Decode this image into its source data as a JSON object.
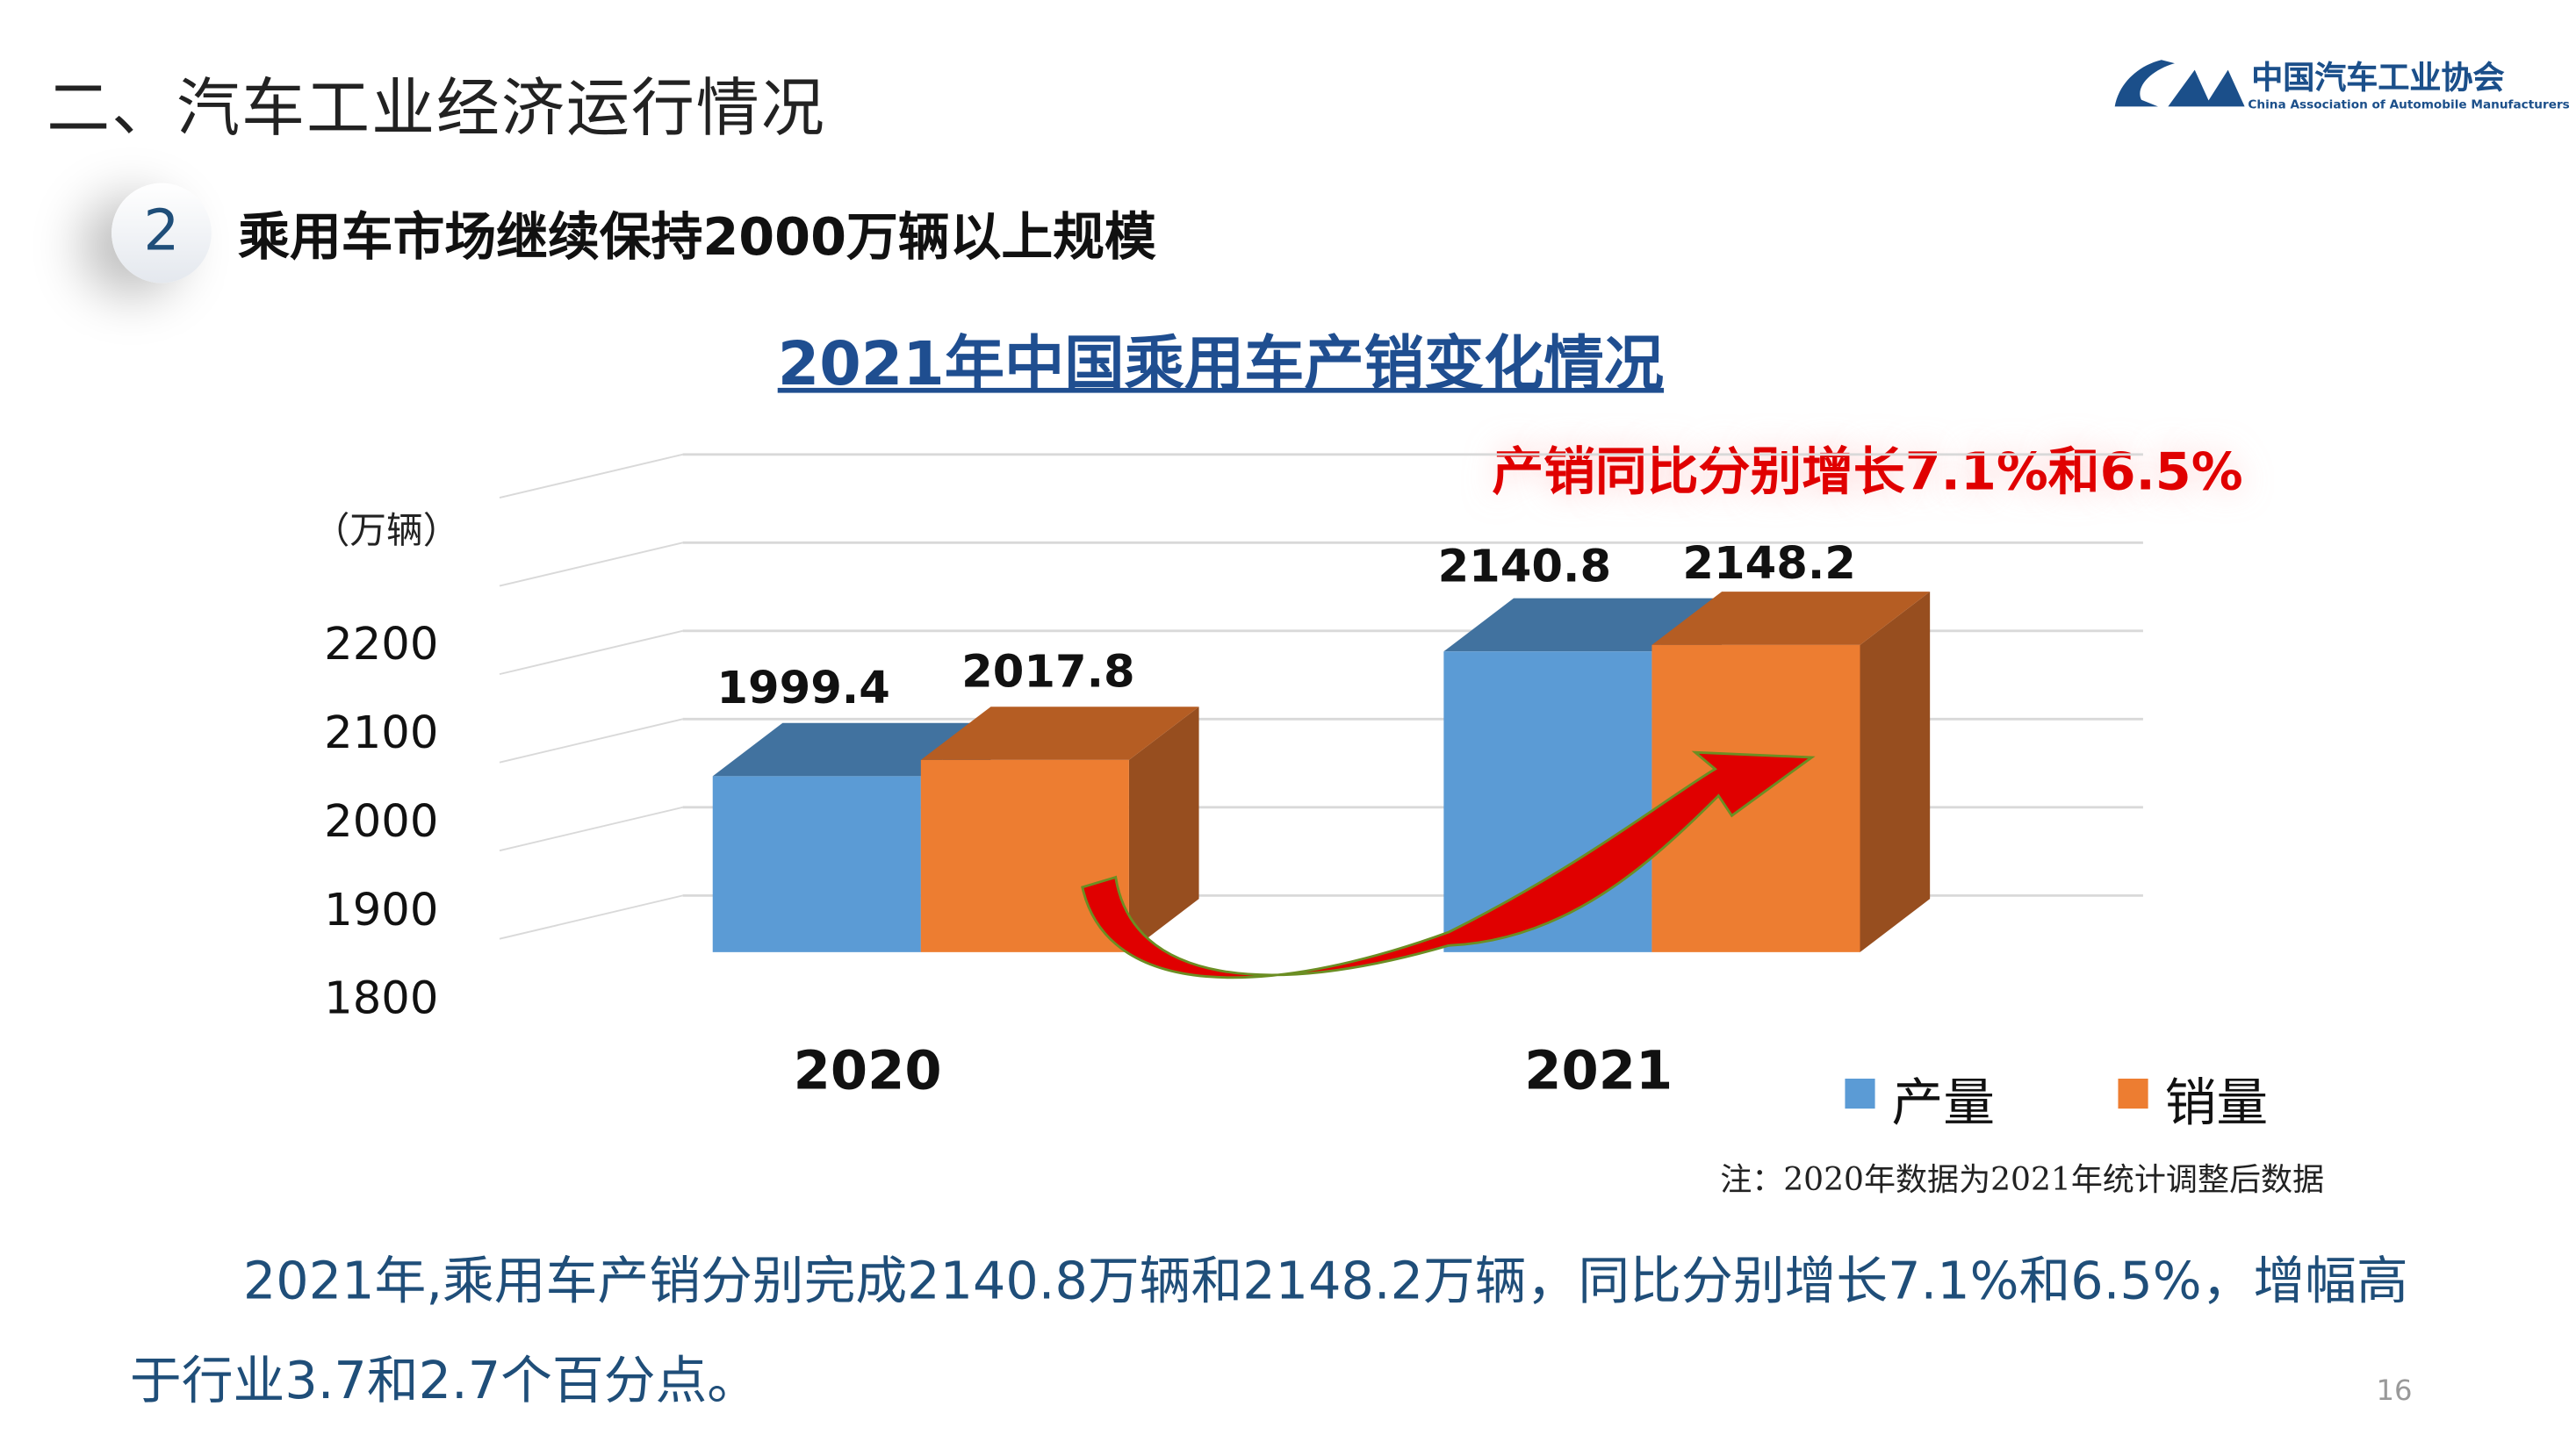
{
  "header": {
    "title": "二、汽车工业经济运行情况",
    "logo_cn": "中国汽车工业协会",
    "logo_en": "China Association of Automobile Manufacturers"
  },
  "section": {
    "number": "2",
    "title": "乘用车市场继续保持2000万辆以上规模"
  },
  "callout": "产销同比分别增长7.1%和6.5%",
  "note": "注：2020年数据为2021年统计调整后数据",
  "summary": "2021年,乘用车产销分别完成2140.8万辆和2148.2万辆，同比分别增长7.1%和6.5%，增幅高于行业3.7和2.7个百分点。",
  "page_number": "16",
  "chart_data": {
    "type": "bar",
    "title": "2021年中国乘用车产销变化情况",
    "ylabel": "（万辆）",
    "categories": [
      "2020",
      "2021"
    ],
    "series": [
      {
        "name": "产量",
        "values": [
          1999.4,
          2140.8
        ],
        "color": "#5b9bd5"
      },
      {
        "name": "销量",
        "values": [
          2017.8,
          2148.2
        ],
        "color": "#ed7d31"
      }
    ],
    "yticks": [
      1800,
      1900,
      2000,
      2100,
      2200
    ],
    "ylim": [
      1800,
      2300
    ],
    "grid": true,
    "legend": "bottom-right",
    "style": "3d-column"
  }
}
